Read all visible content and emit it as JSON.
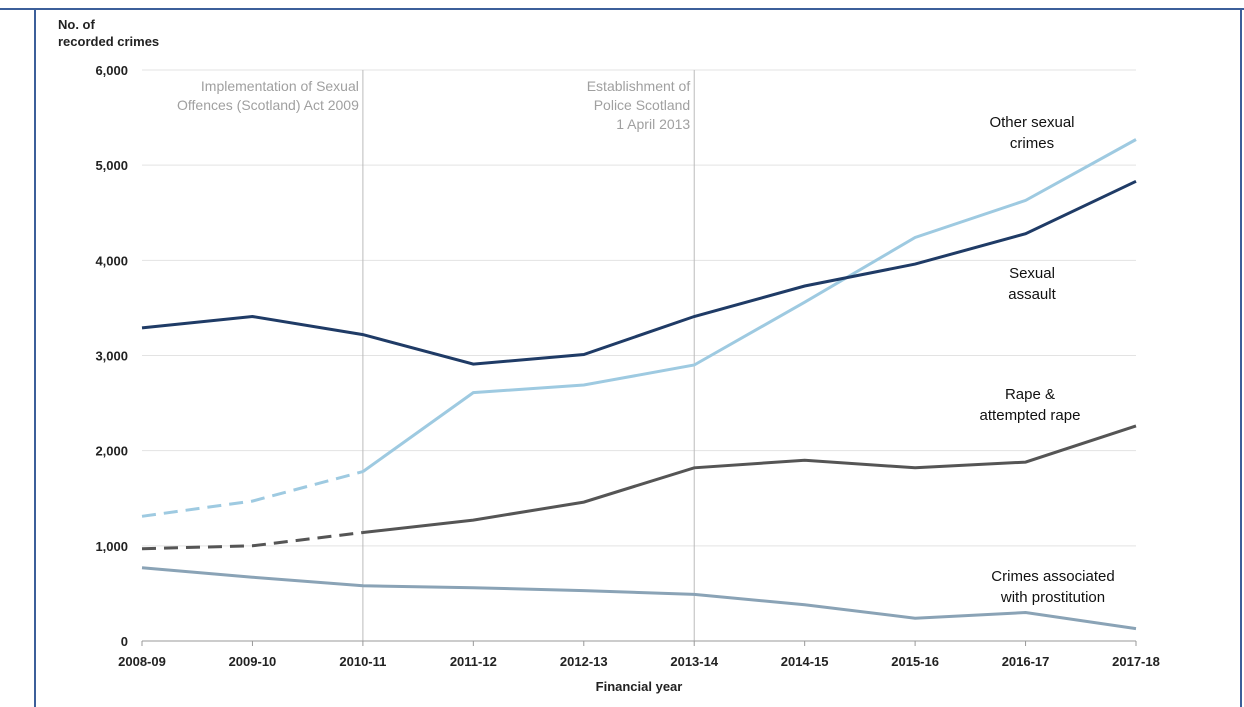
{
  "chart_data": {
    "type": "line",
    "ylabel_lines": [
      "No. of",
      "recorded crimes"
    ],
    "xlabel": "Financial year",
    "categories": [
      "2008-09",
      "2009-10",
      "2010-11",
      "2011-12",
      "2012-13",
      "2013-14",
      "2014-15",
      "2015-16",
      "2016-17",
      "2017-18"
    ],
    "ylim": [
      0,
      6000
    ],
    "yticks": [
      0,
      1000,
      2000,
      3000,
      4000,
      5000,
      6000
    ],
    "ytick_labels": [
      "0",
      "1,000",
      "2,000",
      "3,000",
      "4,000",
      "5,000",
      "6,000"
    ],
    "grid": "horizontal",
    "dashed_through_index": 2,
    "series": [
      {
        "name": "Other sexual crimes",
        "label_lines": [
          "Other sexual",
          "crimes"
        ],
        "color": "#9ecae1",
        "values": [
          1310,
          1470,
          1780,
          2610,
          2690,
          2900,
          3560,
          4240,
          4630,
          5270
        ],
        "dashed_start": true
      },
      {
        "name": "Sexual assault",
        "label_lines": [
          "Sexual",
          "assault"
        ],
        "color": "#1f3b66",
        "values": [
          3290,
          3410,
          3220,
          2910,
          3010,
          3410,
          3730,
          3960,
          4280,
          4830
        ],
        "dashed_start": false
      },
      {
        "name": "Rape & attempted rape",
        "label_lines": [
          "Rape &",
          "attempted rape"
        ],
        "color": "#555555",
        "values": [
          970,
          1000,
          1140,
          1270,
          1460,
          1820,
          1900,
          1820,
          1880,
          2260
        ],
        "dashed_start": true
      },
      {
        "name": "Crimes associated with prostitution",
        "label_lines": [
          "Crimes associated",
          "with prostitution"
        ],
        "color": "#8aa3b6",
        "values": [
          770,
          670,
          580,
          560,
          530,
          490,
          380,
          240,
          300,
          130
        ],
        "dashed_start": false
      }
    ],
    "annotations": [
      {
        "at_category": "2010-11",
        "lines": [
          "Implementation  of Sexual",
          "Offences (Scotland) Act 2009"
        ]
      },
      {
        "at_category": "2013-14",
        "lines": [
          "Establishment of",
          "Police Scotland",
          "1 April 2013"
        ]
      }
    ],
    "colors": {
      "gridline": "#e3e3e3",
      "annotation_line": "#bbbbbb",
      "frame": "#3c5f9a"
    }
  }
}
